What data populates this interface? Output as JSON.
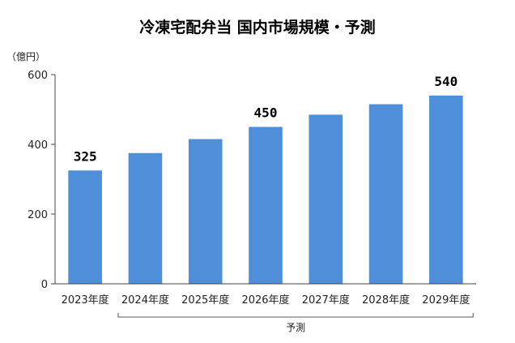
{
  "chart_data": {
    "type": "bar",
    "title": "冷凍宅配弁当 国内市場規模・予測",
    "ylabel": "（億円）",
    "xlabel": "",
    "categories": [
      "2023年度",
      "2024年度",
      "2025年度",
      "2026年度",
      "2027年度",
      "2028年度",
      "2029年度"
    ],
    "values": [
      325,
      375,
      415,
      450,
      485,
      515,
      540
    ],
    "data_labels": [
      "325",
      "",
      "",
      "450",
      "",
      "",
      "540"
    ],
    "ylim": [
      0,
      600
    ],
    "yticks": [
      "0",
      "200",
      "400",
      "600"
    ],
    "bar_color": "#4f8ed8",
    "grid": false,
    "legend": "none",
    "annotation": {
      "label": "予測"
    }
  }
}
